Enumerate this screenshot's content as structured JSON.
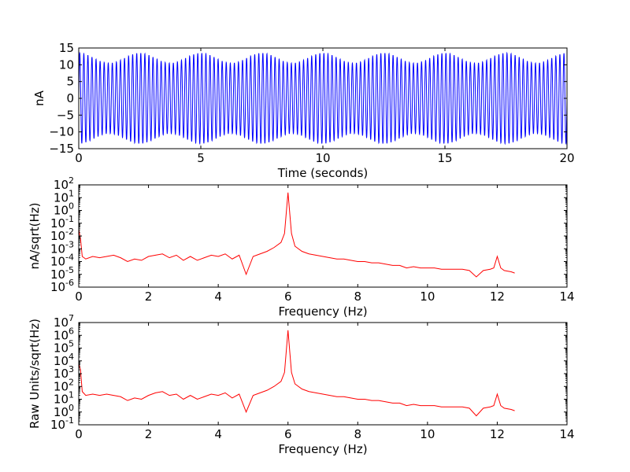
{
  "colors": {
    "time_series": "#0000ff",
    "spectrum": "#ff0000",
    "axes": "#000000",
    "background": "#ffffff"
  },
  "chart_data": [
    {
      "type": "line",
      "id": "time",
      "xlabel": "Time (seconds)",
      "ylabel": "nA",
      "xlim": [
        0,
        20
      ],
      "ylim": [
        -15,
        15
      ],
      "xticks": [
        0,
        5,
        10,
        15,
        20
      ],
      "yticks": [
        -15,
        -10,
        -5,
        0,
        5,
        10,
        15
      ],
      "xticklabels": [
        "0",
        "5",
        "10",
        "15",
        "20"
      ],
      "yticklabels": [
        "−15",
        "−10",
        "−5",
        "0",
        "5",
        "10",
        "15"
      ],
      "grid": false,
      "signal": {
        "frequency_hz": 6,
        "amplitude_min": 10.5,
        "amplitude_max": 13.5,
        "beat_period_s": 2.5
      },
      "series": [
        {
          "color": "#0000ff",
          "signal": "6 Hz sinusoid, amplitude 10.5-13.5 nA, 20 s"
        }
      ]
    },
    {
      "type": "line",
      "id": "psd_na",
      "xlabel": "Frequency (Hz)",
      "ylabel": "nA/sqrt(Hz)",
      "xlim": [
        0,
        14
      ],
      "ylim_log10": [
        -6,
        2
      ],
      "yscale": "log",
      "xticks": [
        0,
        2,
        4,
        6,
        8,
        10,
        12,
        14
      ],
      "xticklabels": [
        "0",
        "2",
        "4",
        "6",
        "8",
        "10",
        "12",
        "14"
      ],
      "yticks_exp": [
        -6,
        -5,
        -4,
        -3,
        -2,
        -1,
        0,
        1,
        2
      ],
      "ytick_base": "10",
      "ytick_sups": [
        "-6",
        "-5",
        "-4",
        "-3",
        "-2",
        "-1",
        "0",
        "1",
        "2"
      ],
      "grid": false,
      "series": [
        {
          "color": "#ff0000",
          "x": [
            0,
            0.05,
            0.1,
            0.2,
            0.4,
            0.6,
            0.8,
            1.0,
            1.2,
            1.4,
            1.6,
            1.8,
            2.0,
            2.2,
            2.4,
            2.6,
            2.8,
            3.0,
            3.2,
            3.4,
            3.6,
            3.8,
            4.0,
            4.2,
            4.4,
            4.6,
            4.8,
            5.0,
            5.2,
            5.4,
            5.6,
            5.8,
            5.9,
            6.0,
            6.1,
            6.2,
            6.4,
            6.6,
            6.8,
            7.0,
            7.2,
            7.4,
            7.6,
            7.8,
            8.0,
            8.2,
            8.4,
            8.6,
            8.8,
            9.0,
            9.2,
            9.4,
            9.6,
            9.8,
            10.0,
            10.2,
            10.4,
            10.6,
            10.8,
            11.0,
            11.2,
            11.4,
            11.6,
            11.8,
            11.9,
            12.0,
            12.1,
            12.2,
            12.4,
            12.5
          ],
          "y_log10": [
            -1.5,
            -2.2,
            -3.6,
            -3.8,
            -3.6,
            -3.7,
            -3.6,
            -3.5,
            -3.7,
            -4.0,
            -3.8,
            -3.9,
            -3.6,
            -3.5,
            -3.4,
            -3.7,
            -3.5,
            -3.9,
            -3.6,
            -3.9,
            -3.7,
            -3.5,
            -3.6,
            -3.4,
            -3.8,
            -3.5,
            -5.0,
            -3.6,
            -3.4,
            -3.2,
            -2.9,
            -2.5,
            -1.8,
            1.4,
            -1.8,
            -2.8,
            -3.2,
            -3.4,
            -3.5,
            -3.6,
            -3.7,
            -3.8,
            -3.8,
            -3.9,
            -4.0,
            -4.0,
            -4.1,
            -4.1,
            -4.2,
            -4.3,
            -4.3,
            -4.5,
            -4.4,
            -4.5,
            -4.5,
            -4.5,
            -4.6,
            -4.6,
            -4.6,
            -4.6,
            -4.7,
            -5.2,
            -4.7,
            -4.6,
            -4.5,
            -3.6,
            -4.5,
            -4.7,
            -4.8,
            -4.9
          ]
        }
      ]
    },
    {
      "type": "line",
      "id": "psd_raw",
      "xlabel": "Frequency (Hz)",
      "ylabel": "Raw Units/sqrt(Hz)",
      "xlim": [
        0,
        14
      ],
      "ylim_log10": [
        -1,
        7
      ],
      "yscale": "log",
      "xticks": [
        0,
        2,
        4,
        6,
        8,
        10,
        12,
        14
      ],
      "xticklabels": [
        "0",
        "2",
        "4",
        "6",
        "8",
        "10",
        "12",
        "14"
      ],
      "yticks_exp": [
        -1,
        0,
        1,
        2,
        3,
        4,
        5,
        6,
        7
      ],
      "ytick_base": "10",
      "ytick_sups": [
        "-1",
        "0",
        "1",
        "2",
        "3",
        "4",
        "5",
        "6",
        "7"
      ],
      "grid": false,
      "series": [
        {
          "color": "#ff0000",
          "x": [
            0,
            0.05,
            0.1,
            0.2,
            0.4,
            0.6,
            0.8,
            1.0,
            1.2,
            1.4,
            1.6,
            1.8,
            2.0,
            2.2,
            2.4,
            2.6,
            2.8,
            3.0,
            3.2,
            3.4,
            3.6,
            3.8,
            4.0,
            4.2,
            4.4,
            4.6,
            4.8,
            5.0,
            5.2,
            5.4,
            5.6,
            5.8,
            5.9,
            6.0,
            6.1,
            6.2,
            6.4,
            6.6,
            6.8,
            7.0,
            7.2,
            7.4,
            7.6,
            7.8,
            8.0,
            8.2,
            8.4,
            8.6,
            8.8,
            9.0,
            9.2,
            9.4,
            9.6,
            9.8,
            10.0,
            10.2,
            10.4,
            10.6,
            10.8,
            11.0,
            11.2,
            11.4,
            11.6,
            11.8,
            11.9,
            12.0,
            12.1,
            12.2,
            12.4,
            12.5
          ],
          "y_log10": [
            3.8,
            3.3,
            1.6,
            1.3,
            1.4,
            1.3,
            1.4,
            1.3,
            1.2,
            0.9,
            1.1,
            1.0,
            1.3,
            1.5,
            1.6,
            1.3,
            1.4,
            1.0,
            1.3,
            1.0,
            1.2,
            1.4,
            1.3,
            1.5,
            1.1,
            1.4,
            0.0,
            1.3,
            1.5,
            1.7,
            2.0,
            2.4,
            3.1,
            6.4,
            3.1,
            2.2,
            1.8,
            1.6,
            1.5,
            1.4,
            1.3,
            1.2,
            1.2,
            1.1,
            1.0,
            1.0,
            0.9,
            0.9,
            0.8,
            0.7,
            0.7,
            0.5,
            0.6,
            0.5,
            0.5,
            0.5,
            0.4,
            0.4,
            0.4,
            0.4,
            0.3,
            -0.3,
            0.3,
            0.4,
            0.5,
            1.4,
            0.5,
            0.3,
            0.2,
            0.1
          ]
        }
      ]
    }
  ]
}
